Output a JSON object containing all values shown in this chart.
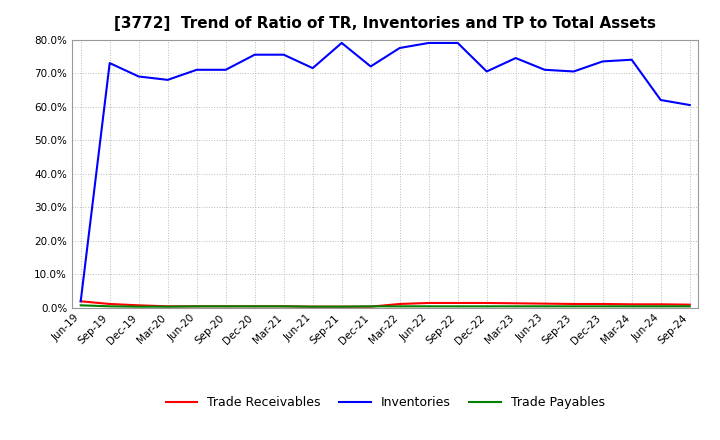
{
  "title": "[3772]  Trend of Ratio of TR, Inventories and TP to Total Assets",
  "x_labels": [
    "Jun-19",
    "Sep-19",
    "Dec-19",
    "Mar-20",
    "Jun-20",
    "Sep-20",
    "Dec-20",
    "Mar-21",
    "Jun-21",
    "Sep-21",
    "Dec-21",
    "Mar-22",
    "Jun-22",
    "Sep-22",
    "Dec-22",
    "Mar-23",
    "Jun-23",
    "Sep-23",
    "Dec-23",
    "Mar-24",
    "Jun-24",
    "Sep-24"
  ],
  "trade_receivables": [
    2.0,
    1.2,
    0.8,
    0.5,
    0.5,
    0.5,
    0.5,
    0.5,
    0.4,
    0.4,
    0.4,
    1.2,
    1.5,
    1.5,
    1.5,
    1.4,
    1.3,
    1.2,
    1.2,
    1.1,
    1.1,
    1.0
  ],
  "inventories": [
    2.0,
    73.0,
    69.0,
    68.0,
    71.0,
    71.0,
    75.5,
    75.5,
    71.5,
    79.0,
    72.0,
    77.5,
    79.0,
    79.0,
    70.5,
    74.5,
    71.0,
    70.5,
    73.5,
    74.0,
    62.0,
    60.5
  ],
  "trade_payables": [
    0.8,
    0.5,
    0.4,
    0.4,
    0.5,
    0.5,
    0.5,
    0.5,
    0.4,
    0.4,
    0.5,
    0.5,
    0.5,
    0.5,
    0.5,
    0.5,
    0.5,
    0.5,
    0.5,
    0.5,
    0.5,
    0.5
  ],
  "tr_color": "#ff0000",
  "inv_color": "#0000ff",
  "tp_color": "#008000",
  "ylim": [
    0,
    80
  ],
  "yticks": [
    0,
    10,
    20,
    30,
    40,
    50,
    60,
    70,
    80
  ],
  "background_color": "#ffffff",
  "grid_color": "#bbbbbb",
  "title_fontsize": 11,
  "tick_fontsize": 7.5,
  "legend_fontsize": 9,
  "line_width": 1.5
}
